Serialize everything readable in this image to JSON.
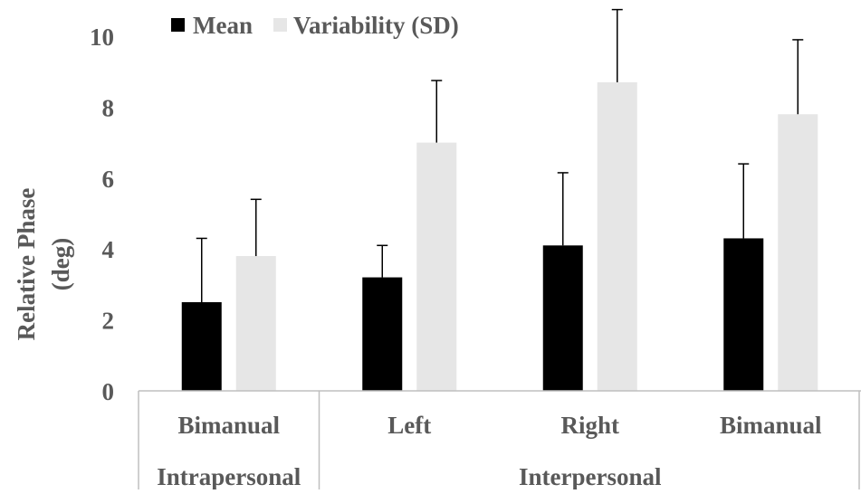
{
  "chart_data": {
    "type": "bar",
    "title": "",
    "ylabel_lines": [
      "Relative Phase",
      "(deg)"
    ],
    "xlabel": "",
    "ylim": [
      0,
      10
    ],
    "yticks": [
      0,
      2,
      4,
      6,
      8,
      10
    ],
    "grid": false,
    "legend_position": "top-left",
    "categories": [
      "Bimanual",
      "Left",
      "Right",
      "Bimanual"
    ],
    "groups": [
      {
        "label": "Intrapersonal",
        "categories": [
          "Bimanual"
        ]
      },
      {
        "label": "Interpersonal",
        "categories": [
          "Left",
          "Right",
          "Bimanual"
        ]
      }
    ],
    "series": [
      {
        "name": "Mean",
        "color": "#000000",
        "values": [
          2.5,
          3.2,
          4.1,
          4.3
        ],
        "error": [
          1.8,
          0.9,
          2.05,
          2.1
        ]
      },
      {
        "name": "Variability (SD)",
        "color": "#e6e6e6",
        "values": [
          3.8,
          7.0,
          8.7,
          7.8
        ],
        "error": [
          1.6,
          1.75,
          2.05,
          2.1
        ]
      }
    ]
  }
}
